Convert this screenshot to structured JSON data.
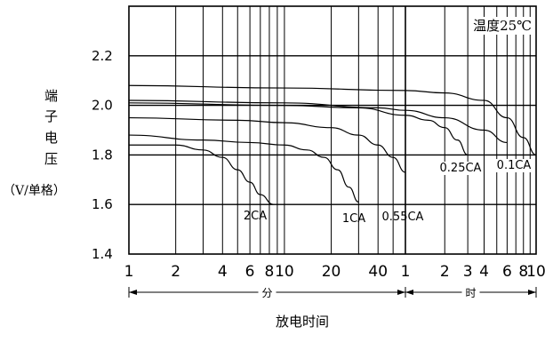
{
  "chart_data": {
    "type": "line",
    "title": "",
    "annotation": "温度25℃",
    "ylabel_chars": [
      "端",
      "子",
      "电",
      "压"
    ],
    "ylabel_unit": "（V/单格）",
    "xlabel": "放电时间",
    "ylim": [
      1.4,
      2.4
    ],
    "yticks": [
      "1.4",
      "1.6",
      "1.8",
      "2.0",
      "2.2"
    ],
    "x_scale": "log",
    "x_segments": [
      {
        "unit": "分",
        "range_minutes": [
          1,
          60
        ],
        "ticks": [
          "1",
          "2",
          "4",
          "6",
          "8",
          "10",
          "20",
          "40"
        ],
        "tick_values": [
          1,
          2,
          4,
          6,
          8,
          10,
          20,
          40
        ]
      },
      {
        "unit": "时",
        "range_hours": [
          1,
          10
        ],
        "ticks": [
          "1",
          "2",
          "3",
          "4",
          "6",
          "8",
          "10"
        ],
        "tick_values": [
          1,
          2,
          3,
          4,
          6,
          8,
          10
        ]
      }
    ],
    "grid": true,
    "series": [
      {
        "name": "2CA",
        "x_minutes": [
          1,
          2,
          3,
          4,
          5,
          6,
          7,
          8.5
        ],
        "values": [
          1.84,
          1.84,
          1.82,
          1.79,
          1.74,
          1.69,
          1.64,
          1.6
        ]
      },
      {
        "name": "1CA",
        "x_minutes": [
          1,
          3,
          6,
          10,
          14,
          18,
          22,
          26,
          30
        ],
        "values": [
          1.88,
          1.86,
          1.85,
          1.84,
          1.82,
          1.79,
          1.74,
          1.67,
          1.61
        ]
      },
      {
        "name": "0.55CA",
        "x_minutes": [
          1,
          5,
          10,
          20,
          30,
          40,
          50,
          60
        ],
        "values": [
          1.95,
          1.94,
          1.93,
          1.91,
          1.88,
          1.84,
          1.79,
          1.73
        ]
      },
      {
        "name": "0.25CA",
        "x_minutes": [
          1,
          10,
          30,
          60,
          90,
          120,
          150,
          180
        ],
        "values": [
          2.01,
          2.0,
          1.99,
          1.96,
          1.94,
          1.91,
          1.86,
          1.8
        ]
      },
      {
        "name": "0.1CA",
        "x_minutes": [
          1,
          10,
          60,
          120,
          240,
          360,
          480,
          600
        ],
        "values": [
          2.08,
          2.07,
          2.06,
          2.05,
          2.02,
          1.95,
          1.87,
          1.8
        ]
      },
      {
        "name": "",
        "x_minutes": [
          1,
          10,
          40,
          60,
          120,
          240,
          360
        ],
        "values": [
          2.02,
          2.01,
          1.99,
          1.98,
          1.95,
          1.9,
          1.85
        ]
      }
    ],
    "series_labels": [
      "2CA",
      "1CA",
      "0.55CA",
      "0.25CA",
      "0.1CA"
    ]
  }
}
